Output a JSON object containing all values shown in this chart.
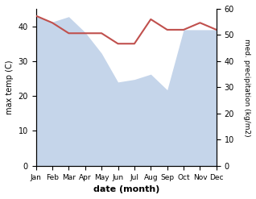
{
  "months": [
    "Jan",
    "Feb",
    "Mar",
    "Apr",
    "May",
    "Jun",
    "Jul",
    "Aug",
    "Sep",
    "Oct",
    "Nov",
    "Dec"
  ],
  "temp": [
    43,
    41,
    38,
    38,
    38,
    35,
    35,
    42,
    39,
    39,
    41,
    39
  ],
  "precip": [
    57,
    55,
    57,
    51,
    43,
    32,
    33,
    35,
    29,
    52,
    52,
    52
  ],
  "temp_color": "#c0504d",
  "precip_fill_color": "#c5d5ea",
  "temp_ylim": [
    0,
    45
  ],
  "precip_ylim": [
    0,
    60
  ],
  "temp_yticks": [
    0,
    10,
    20,
    30,
    40
  ],
  "precip_yticks": [
    0,
    10,
    20,
    30,
    40,
    50,
    60
  ],
  "xlabel": "date (month)",
  "ylabel_left": "max temp (C)",
  "ylabel_right": "med. precipitation (kg/m2)",
  "background_color": "#ffffff"
}
